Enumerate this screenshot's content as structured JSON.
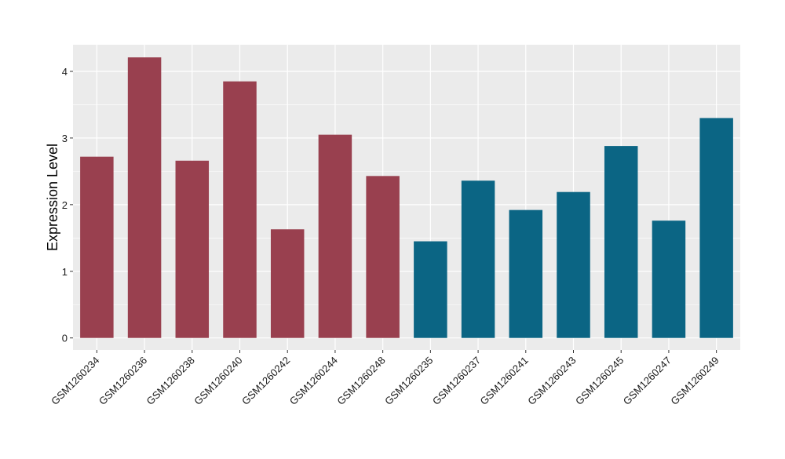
{
  "chart_data": {
    "type": "bar",
    "title": "",
    "xlabel": "",
    "ylabel": "Expression Level",
    "ylim": [
      -0.18,
      4.4
    ],
    "yticks": [
      0,
      1,
      2,
      3,
      4
    ],
    "grid": true,
    "legend": "none",
    "categories": [
      "GSM1260234",
      "GSM1260236",
      "GSM1260238",
      "GSM1260240",
      "GSM1260242",
      "GSM1260244",
      "GSM1260248",
      "GSM1260235",
      "GSM1260237",
      "GSM1260241",
      "GSM1260243",
      "GSM1260245",
      "GSM1260247",
      "GSM1260249"
    ],
    "values": [
      2.72,
      4.21,
      2.66,
      3.85,
      1.63,
      3.05,
      2.43,
      1.45,
      2.36,
      1.92,
      2.19,
      2.88,
      1.76,
      3.3
    ],
    "groups": [
      0,
      0,
      0,
      0,
      0,
      0,
      0,
      1,
      1,
      1,
      1,
      1,
      1,
      1
    ],
    "group_colors": [
      "#99404f",
      "#0b6584"
    ],
    "panel_color": "#ebebeb",
    "grid_color": "#ffffff"
  }
}
